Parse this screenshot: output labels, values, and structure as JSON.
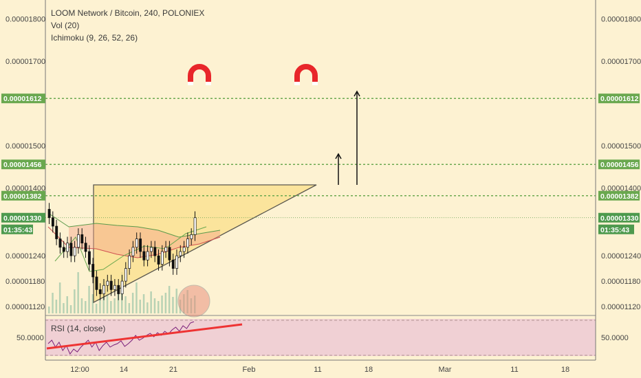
{
  "header": {
    "title": "LOOM Network / Bitcoin, 240, POLONIEX",
    "indicator_1": "Vol (20)",
    "indicator_2": "Ichimoku (9, 26, 52, 26)"
  },
  "rsi": {
    "label": "RSI (14, close)",
    "axis_value": "50.0000"
  },
  "colors": {
    "background": "#fdf2d2",
    "rsi_background": "#f0d0d4",
    "level_line": "#6aa84f",
    "badge_green": "#6aa84f",
    "triangle_fill": "#fbe08a",
    "cloud_red": "#f4a58a",
    "trend_red": "#ee3333",
    "magnet_red": "#e8262a"
  },
  "chart_data": {
    "type": "candlestick",
    "symbol": "LOOM/BTC",
    "timeframe": "240",
    "exchange": "POLONIEX",
    "ylim": [
      1.08e-05,
      1.85e-05
    ],
    "y_ticks": [
      "0.00001800",
      "0.00001700",
      "0.00001500",
      "0.00001400",
      "0.00001240",
      "0.00001180",
      "0.00001120"
    ],
    "y_tick_values": [
      1.8e-05,
      1.7e-05,
      1.5e-05,
      1.4e-05,
      1.24e-05,
      1.18e-05,
      1.12e-05
    ],
    "x_ticks": [
      "12:00",
      "14",
      "21",
      "Feb",
      "11",
      "18",
      "Mar",
      "11",
      "18"
    ],
    "levels": [
      {
        "label": "0.00001612",
        "value": 1.612e-05
      },
      {
        "label": "0.00001456",
        "value": 1.456e-05
      },
      {
        "label": "0.00001382",
        "value": 1.382e-05
      }
    ],
    "last_price": {
      "label": "0.00001330",
      "value": 1.33e-05
    },
    "countdown": "01:35:43",
    "closes": [
      1.33e-05,
      1.31e-05,
      1.28e-05,
      1.26e-05,
      1.25e-05,
      1.27e-05,
      1.24e-05,
      1.26e-05,
      1.29e-05,
      1.27e-05,
      1.25e-05,
      1.22e-05,
      1.19e-05,
      1.16e-05,
      1.15e-05,
      1.17e-05,
      1.18e-05,
      1.16e-05,
      1.17e-05,
      1.15e-05,
      1.18e-05,
      1.21e-05,
      1.24e-05,
      1.26e-05,
      1.28e-05,
      1.25e-05,
      1.23e-05,
      1.25e-05,
      1.26e-05,
      1.24e-05,
      1.22e-05,
      1.25e-05,
      1.26e-05,
      1.23e-05,
      1.21e-05,
      1.24e-05,
      1.25e-05,
      1.26e-05,
      1.28e-05,
      1.29e-05,
      1.33e-05
    ]
  }
}
